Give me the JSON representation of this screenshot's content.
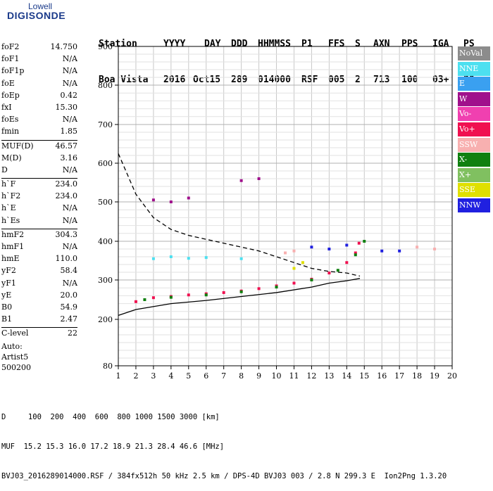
{
  "logo": {
    "line1": "Lowell",
    "line2": "DIGISONDE"
  },
  "header": {
    "labels": [
      "Station",
      "YYYY",
      "DAY",
      "DDD",
      "HHMMSS",
      "P1",
      "FFS",
      "S",
      "AXN",
      "PPS",
      "IGA",
      "PS"
    ],
    "values": [
      "Boa Vista",
      "2016",
      "Oct15",
      "289",
      "014000",
      "RSF",
      "005",
      "2",
      "713",
      "100",
      "03+",
      "30"
    ]
  },
  "params": [
    [
      {
        "k": "foF2",
        "v": "14.750"
      },
      {
        "k": "foF1",
        "v": "N/A"
      },
      {
        "k": "foF1p",
        "v": "N/A"
      },
      {
        "k": "foE",
        "v": "N/A"
      },
      {
        "k": "foEp",
        "v": "0.42"
      },
      {
        "k": "fxI",
        "v": "15.30"
      },
      {
        "k": "foEs",
        "v": "N/A"
      },
      {
        "k": "fmin",
        "v": "1.85"
      }
    ],
    [
      {
        "k": "MUF(D)",
        "v": "46.57"
      },
      {
        "k": "M(D)",
        "v": "3.16"
      },
      {
        "k": "D",
        "v": "N/A"
      }
    ],
    [
      {
        "k": "h`F",
        "v": "234.0"
      },
      {
        "k": "h`F2",
        "v": "234.0"
      },
      {
        "k": "h`E",
        "v": "N/A"
      },
      {
        "k": "h`Es",
        "v": "N/A"
      }
    ],
    [
      {
        "k": "hmF2",
        "v": "304.3"
      },
      {
        "k": "hmF1",
        "v": "N/A"
      },
      {
        "k": "hmE",
        "v": "110.0"
      },
      {
        "k": "yF2",
        "v": "58.4"
      },
      {
        "k": "yF1",
        "v": "N/A"
      },
      {
        "k": "yE",
        "v": "20.0"
      },
      {
        "k": "B0",
        "v": "54.9"
      },
      {
        "k": "B1",
        "v": "2.47"
      }
    ],
    [
      {
        "k": "C-level",
        "v": "22"
      }
    ]
  ],
  "auto": {
    "line1": "Auto:",
    "line2": "Artist5",
    "line3": "500200"
  },
  "bottom": {
    "line1": "D     100  200  400  600  800 1000 1500 3000 [km]",
    "line2": "MUF  15.2 15.3 16.0 17.2 18.9 21.3 28.4 46.6 [MHz]",
    "line3": "BVJ03_2016289014000.RSF / 384fx512h 50 kHz 2.5 km / DPS-4D BVJ03 003 / 2.8 N 299.3 E  Ion2Png 1.3.20"
  },
  "legend": [
    {
      "label": "NoVal",
      "color": "#8c8c8c"
    },
    {
      "label": "NNE",
      "color": "#4de0f0"
    },
    {
      "label": "E",
      "color": "#3aa0f0"
    },
    {
      "label": "W",
      "color": "#a0108c"
    },
    {
      "label": "Vo-",
      "color": "#f040b0"
    },
    {
      "label": "Vo+",
      "color": "#f01050"
    },
    {
      "label": "SSW",
      "color": "#f8b0b0"
    },
    {
      "label": "X-",
      "color": "#108010"
    },
    {
      "label": "X+",
      "color": "#80c060"
    },
    {
      "label": "SSE",
      "color": "#e0e000"
    },
    {
      "label": "NNW",
      "color": "#2020e0"
    }
  ],
  "chart_data": {
    "type": "scatter",
    "xlim": [
      1,
      20
    ],
    "ylim": [
      80,
      900
    ],
    "x_ticks": [
      1,
      2,
      3,
      4,
      5,
      6,
      7,
      8,
      9,
      10,
      11,
      12,
      13,
      14,
      15,
      16,
      17,
      18,
      19,
      20
    ],
    "y_ticks": [
      80,
      200,
      300,
      400,
      500,
      600,
      700,
      800,
      900
    ],
    "grid": true,
    "series": [
      {
        "name": "Vo+",
        "color": "#f01050",
        "style": "points",
        "x": [
          2.0,
          3.0,
          4.0,
          5.0,
          6.0,
          7.0,
          8.0,
          9.0,
          10.0,
          11.0,
          12.0,
          13.0,
          14.0,
          14.5,
          14.7
        ],
        "y": [
          245,
          255,
          258,
          262,
          265,
          268,
          272,
          278,
          285,
          292,
          302,
          318,
          345,
          370,
          395
        ]
      },
      {
        "name": "X-",
        "color": "#108010",
        "style": "points",
        "x": [
          2.5,
          4.0,
          6.0,
          8.0,
          10.0,
          12.0,
          13.5,
          14.5,
          15.0
        ],
        "y": [
          250,
          256,
          262,
          270,
          282,
          300,
          325,
          365,
          400
        ]
      },
      {
        "name": "NNE",
        "color": "#4de0f0",
        "style": "points",
        "x": [
          3.0,
          4.0,
          5.0,
          6.0,
          8.0
        ],
        "y": [
          355,
          360,
          356,
          358,
          355
        ]
      },
      {
        "name": "W",
        "color": "#a0108c",
        "style": "points",
        "x": [
          3.0,
          4.0,
          5.0,
          8.0,
          9.0
        ],
        "y": [
          505,
          500,
          510,
          555,
          560
        ]
      },
      {
        "name": "NNW",
        "color": "#2020e0",
        "style": "points",
        "x": [
          12.0,
          13.0,
          14.0,
          16.0,
          17.0
        ],
        "y": [
          385,
          380,
          390,
          375,
          375
        ]
      },
      {
        "name": "SSW",
        "color": "#f8b0b0",
        "style": "points",
        "x": [
          10.5,
          11.0,
          18.0,
          19.0
        ],
        "y": [
          370,
          375,
          385,
          380
        ]
      },
      {
        "name": "SSE",
        "color": "#e0e000",
        "style": "points",
        "x": [
          11.0,
          11.5
        ],
        "y": [
          330,
          345
        ]
      },
      {
        "name": "",
        "color": "#000000",
        "style": "solid",
        "x": [
          1.0,
          2.0,
          4.0,
          6.0,
          8.0,
          10.0,
          12.0,
          13.0,
          14.0,
          14.5,
          14.75
        ],
        "y": [
          210,
          225,
          240,
          248,
          258,
          268,
          282,
          292,
          298,
          302,
          304
        ]
      },
      {
        "name": "",
        "color": "#000000",
        "style": "dashed",
        "x": [
          1.0,
          2.0,
          3.0,
          4.0,
          5.0,
          6.0,
          7.0,
          8.0,
          9.0,
          10.0,
          11.0,
          12.0,
          13.0,
          14.0,
          14.75
        ],
        "y": [
          625,
          520,
          460,
          430,
          415,
          405,
          395,
          385,
          375,
          360,
          345,
          330,
          322,
          318,
          310
        ]
      }
    ]
  }
}
